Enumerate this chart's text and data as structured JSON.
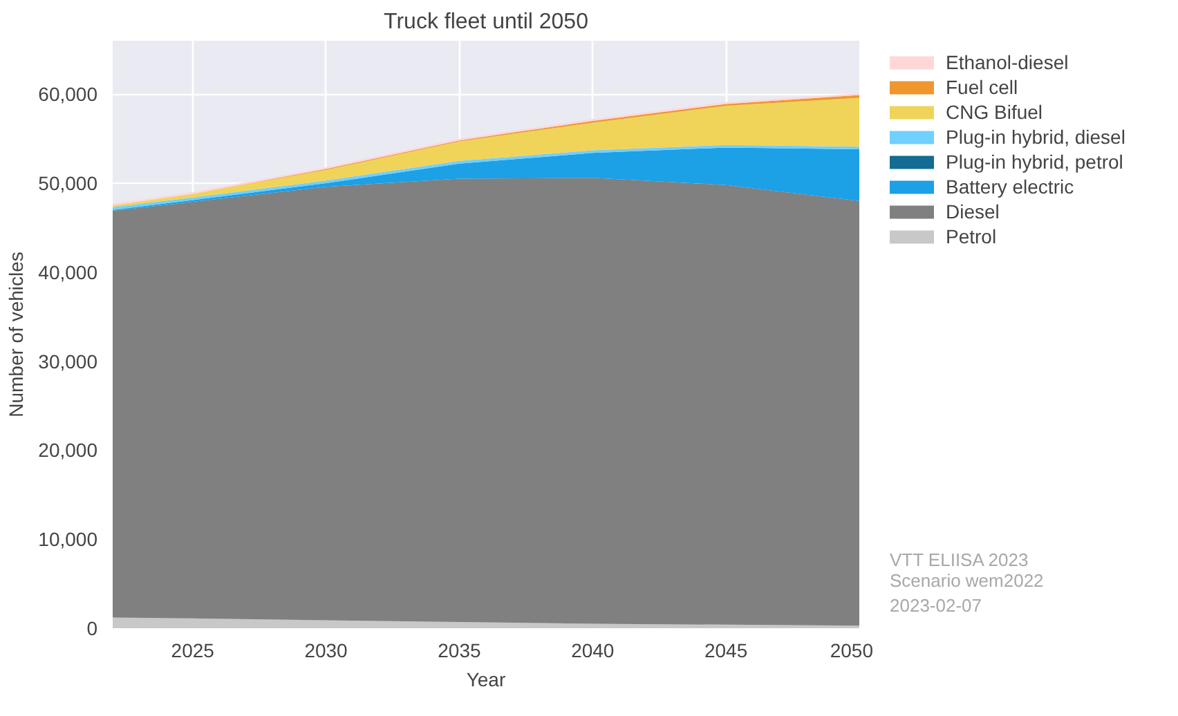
{
  "chart_data": {
    "type": "area",
    "stacked": true,
    "title": "Truck fleet until 2050",
    "xlabel": "Year",
    "ylabel": "Number of vehicles",
    "x": [
      2022,
      2025,
      2030,
      2035,
      2040,
      2045,
      2050
    ],
    "series": [
      {
        "name": "Petrol",
        "color": "#c8c8c8",
        "values": [
          1200,
          1100,
          900,
          700,
          500,
          400,
          300
        ]
      },
      {
        "name": "Diesel",
        "color": "#808080",
        "values": [
          45700,
          46800,
          48700,
          49800,
          50100,
          49400,
          47700
        ]
      },
      {
        "name": "Battery electric",
        "color": "#1ca0e6",
        "values": [
          100,
          200,
          400,
          1700,
          2800,
          4200,
          5800
        ]
      },
      {
        "name": "Plug-in hybrid, petrol",
        "color": "#126c94",
        "values": [
          null,
          null,
          null,
          null,
          null,
          null,
          null
        ]
      },
      {
        "name": "Plug-in hybrid, diesel",
        "color": "#70d0ff",
        "values": [
          300,
          300,
          300,
          300,
          300,
          300,
          300
        ]
      },
      {
        "name": "CNG Bifuel",
        "color": "#f0d45a",
        "values": [
          200,
          400,
          1200,
          2200,
          3100,
          4400,
          5500
        ]
      },
      {
        "name": "Fuel cell",
        "color": "#f0962e",
        "values": [
          0,
          0,
          100,
          100,
          200,
          200,
          300
        ]
      },
      {
        "name": "Ethanol-diesel",
        "color": "#ffd7d7",
        "values": [
          200,
          200,
          200,
          200,
          200,
          200,
          200
        ]
      }
    ],
    "xlim": [
      2022,
      2050
    ],
    "xticks": [
      2025,
      2030,
      2035,
      2040,
      2045,
      2050
    ],
    "ylim": [
      0,
      66000
    ],
    "yticks": [
      {
        "value": 0,
        "label": "0"
      },
      {
        "value": 10000,
        "label": "10,000"
      },
      {
        "value": 20000,
        "label": "20,000"
      },
      {
        "value": 30000,
        "label": "30,000"
      },
      {
        "value": 40000,
        "label": "40,000"
      },
      {
        "value": 50000,
        "label": "50,000"
      },
      {
        "value": 60000,
        "label": "60,000"
      }
    ],
    "grid": true,
    "legend": "right",
    "annotations": [
      "VTT ELIISA 2023",
      "Scenario wem2022",
      "2023-02-07"
    ]
  }
}
